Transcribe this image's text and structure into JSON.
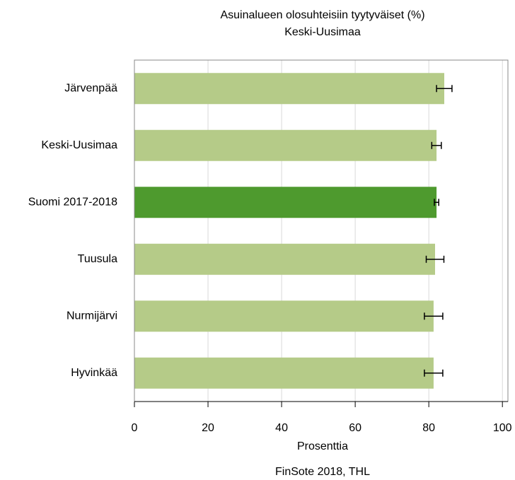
{
  "chart_data": {
    "type": "hbar",
    "title": "Asuinalueen olosuhteisiin tyytyväiset (%)",
    "subtitle": "Keski-Uusimaa",
    "xlabel": "Prosenttia",
    "source": "FinSote 2018, THL",
    "categories": [
      "Järvenpää",
      "Keski-Uusimaa",
      "Suomi 2017-2018",
      "Tuusula",
      "Nurmijärvi",
      "Hyvinkää"
    ],
    "values": [
      84.2,
      82.1,
      82.1,
      81.7,
      81.3,
      81.3
    ],
    "errors": [
      2.1,
      1.3,
      0.6,
      2.4,
      2.5,
      2.5
    ],
    "colors": [
      "#b5cb88",
      "#b5cb88",
      "#4e9a2e",
      "#b5cb88",
      "#b5cb88",
      "#b5cb88"
    ],
    "xlim": [
      0,
      101.5
    ],
    "xticks": [
      0,
      20,
      40,
      60,
      80,
      100
    ],
    "grid": true
  }
}
